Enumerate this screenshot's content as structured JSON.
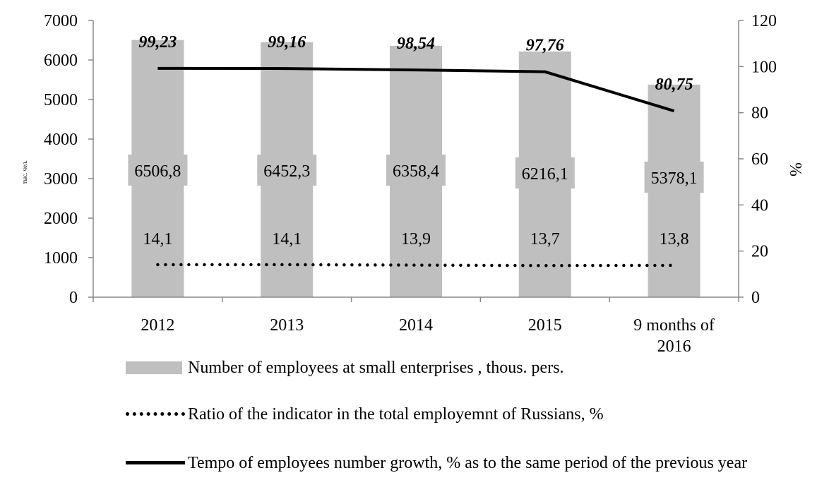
{
  "chart_data": {
    "type": "bar",
    "categories": [
      "2012",
      "2013",
      "2014",
      "2015",
      "9 months of 2016"
    ],
    "series": [
      {
        "name": "Number of employees at small enterprises , thous. pers.",
        "kind": "bar",
        "axis": "left",
        "color": "#bfbfbf",
        "values": [
          6506.8,
          6452.3,
          6358.4,
          6216.1,
          5378.1
        ],
        "labels": [
          "6506,8",
          "6452,3",
          "6358,4",
          "6216,1",
          "5378,1"
        ]
      },
      {
        "name": "Ratio of the indicator in the total employemnt of Russians, %",
        "kind": "line-dotted",
        "axis": "right",
        "color": "#000000",
        "values": [
          14.1,
          14.1,
          13.9,
          13.7,
          13.8
        ],
        "labels": [
          "14,1",
          "14,1",
          "13,9",
          "13,7",
          "13,8"
        ]
      },
      {
        "name": "Tempo of employees number growth, % as to the same period of the previous year",
        "kind": "line-solid",
        "axis": "right",
        "color": "#000000",
        "values": [
          99.23,
          99.16,
          98.54,
          97.76,
          80.75
        ],
        "labels": [
          "99,23",
          "99,16",
          "98,54",
          "97,76",
          "80,75"
        ]
      }
    ],
    "ylabel_left": "тыс. чел.",
    "ylabel_right": "%",
    "ylim_left": [
      0,
      7000
    ],
    "ylim_right": [
      0,
      120
    ],
    "yticks_left": [
      "0",
      "1000",
      "2000",
      "3000",
      "4000",
      "5000",
      "6000",
      "7000"
    ],
    "yticks_right": [
      "0",
      "20",
      "40",
      "60",
      "80",
      "100",
      "120"
    ],
    "xtick_labels": [
      [
        "2012"
      ],
      [
        "2013"
      ],
      [
        "2014"
      ],
      [
        "2015"
      ],
      [
        "9 months of",
        "2016"
      ]
    ],
    "grid": false,
    "legend_position": "bottom"
  }
}
